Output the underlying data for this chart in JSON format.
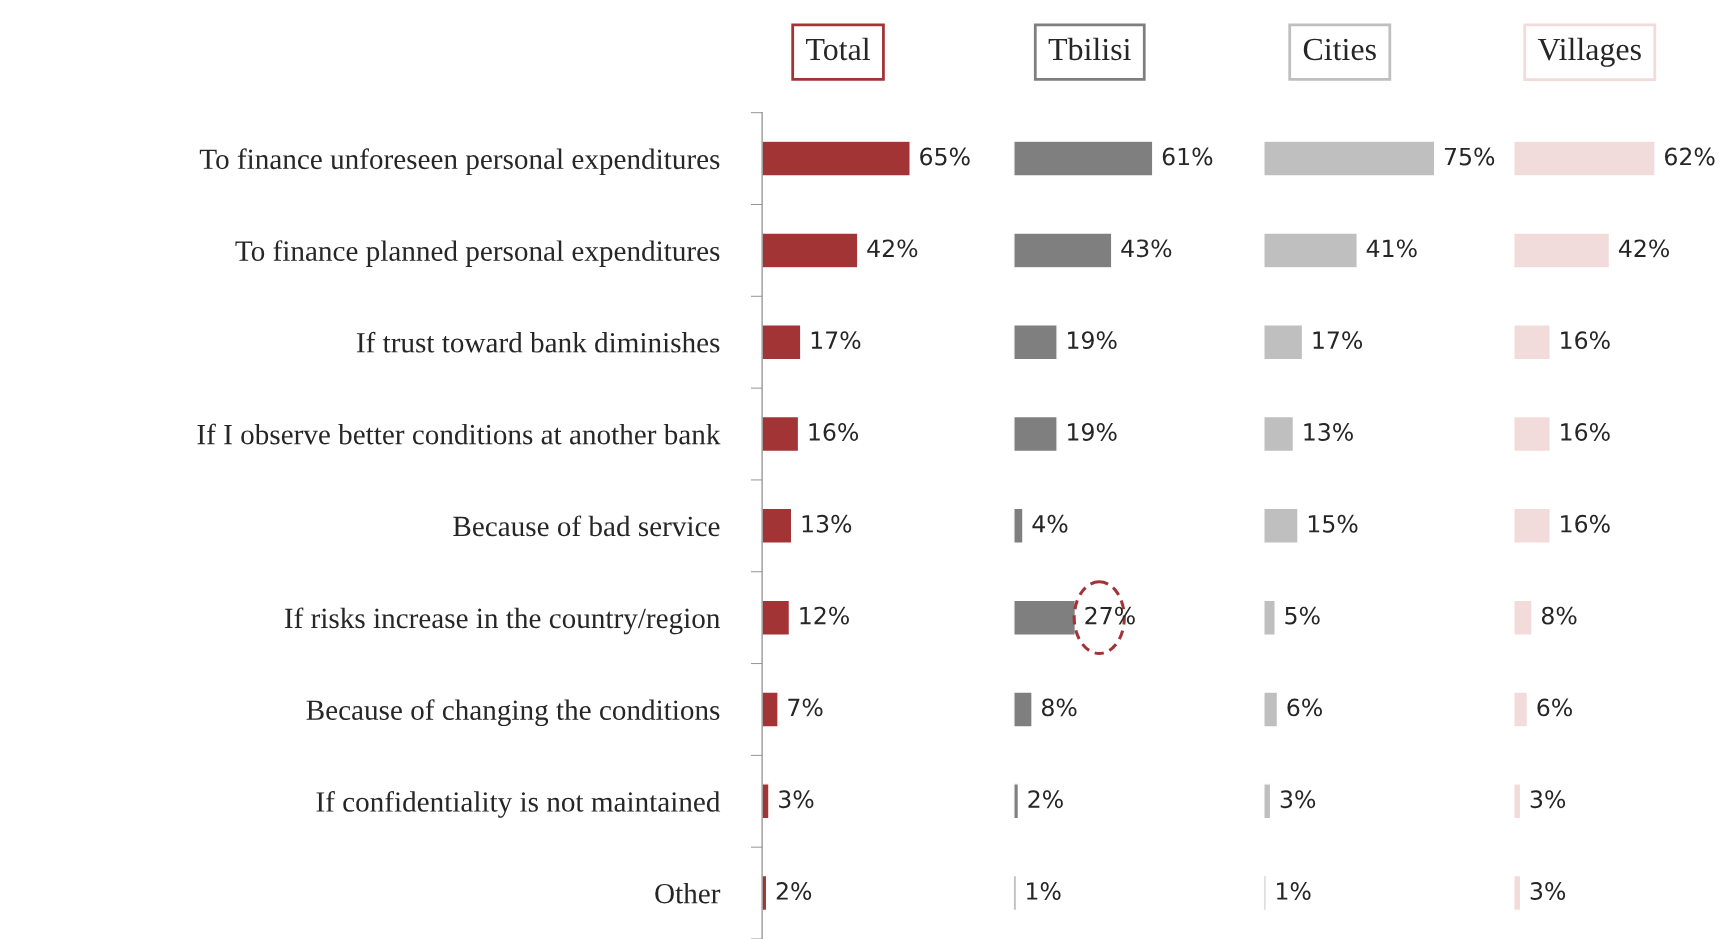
{
  "chart_data": [
    {
      "type": "bar",
      "orientation": "horizontal",
      "title": "Total",
      "categories": [
        "To finance unforeseen personal expenditures",
        "To finance planned personal expenditures",
        "If trust toward bank diminishes",
        "If I observe better conditions at another bank",
        "Because of bad service",
        "If risks increase in the country/region",
        "Because of changing the conditions",
        "If confidentiality is not maintained",
        "Other"
      ],
      "values": [
        65,
        42,
        17,
        16,
        13,
        12,
        7,
        3,
        2
      ],
      "value_labels": [
        "65%",
        "42%",
        "17%",
        "16%",
        "13%",
        "12%",
        "7%",
        "3%",
        "2%"
      ],
      "color": "#a33436",
      "tick_labels": "y"
    },
    {
      "type": "bar",
      "orientation": "horizontal",
      "title": "Tbilisi",
      "categories": [
        "To finance unforeseen personal expenditures",
        "To finance planned personal expenditures",
        "If trust toward bank diminishes",
        "If I observe better conditions at another bank",
        "Because of bad service",
        "If risks increase in the country/region",
        "Because of changing the conditions",
        "If confidentiality is not maintained",
        "Other"
      ],
      "values": [
        61,
        43,
        19,
        19,
        4,
        27,
        8,
        2,
        1
      ],
      "value_labels": [
        "61%",
        "43%",
        "19%",
        "19%",
        "4%",
        null,
        "8%",
        "2%",
        "1%"
      ],
      "color": "#7f7f7f",
      "tick_labels": false,
      "annotations": [
        {
          "text": "27%",
          "y": "If risks increase in the country/region",
          "x": 27
        }
      ]
    },
    {
      "type": "bar",
      "orientation": "horizontal",
      "title": "Cities",
      "categories": [
        "To finance unforeseen personal expenditures",
        "To finance planned personal expenditures",
        "If trust toward bank diminishes",
        "If I observe better conditions at another bank",
        "Because of bad service",
        "If risks increase in the country/region",
        "Because of changing the conditions",
        "If confidentiality is not maintained",
        "Other"
      ],
      "values": [
        75,
        41,
        17,
        13,
        15,
        5,
        6,
        3,
        1
      ],
      "value_labels": [
        "75%",
        "41%",
        "17%",
        "13%",
        "15%",
        "5%",
        "6%",
        "3%",
        "1%"
      ],
      "color": "#bfbfbf",
      "tick_labels": false
    },
    {
      "type": "bar",
      "orientation": "horizontal",
      "title": "Villages",
      "categories": [
        "To finance unforeseen personal expenditures",
        "To finance planned personal expenditures",
        "If trust toward bank diminishes",
        "If I observe better conditions at another bank",
        "Because of bad service",
        "If risks increase in the country/region",
        "Because of changing the conditions",
        "If confidentiality is not maintained",
        "Other"
      ],
      "values": [
        62,
        42,
        16,
        16,
        16,
        8,
        6,
        3,
        3
      ],
      "value_labels": [
        "62%",
        "42%",
        "16%",
        "16%",
        "16%",
        "8%",
        "6%",
        "3%",
        "3%"
      ],
      "color": "#f2dcdb",
      "tick_labels": false
    }
  ]
}
